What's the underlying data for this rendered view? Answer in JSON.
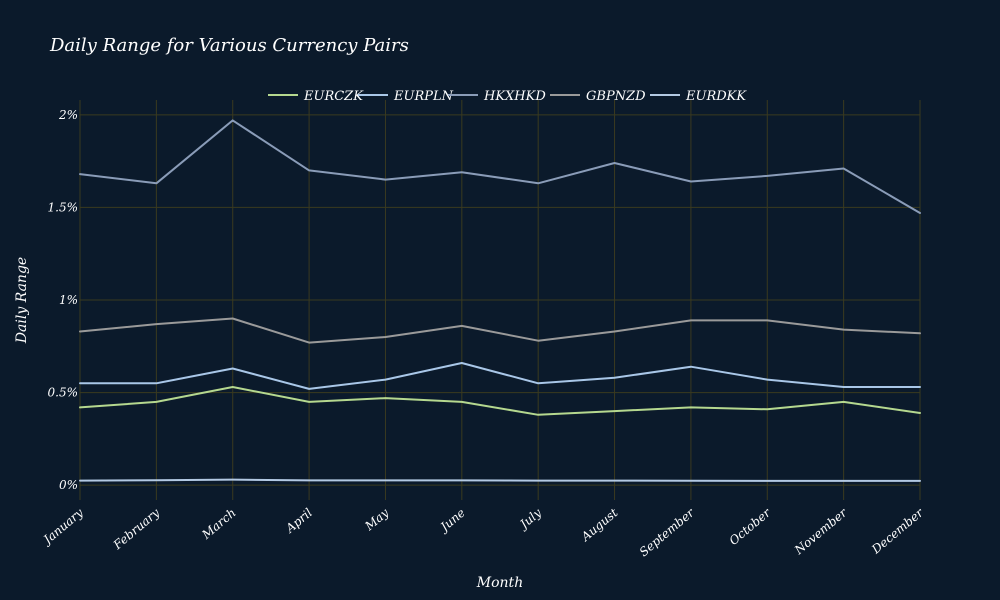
{
  "chart_data": {
    "type": "line",
    "title": "Daily Range for Various Currency Pairs",
    "xlabel": "Month",
    "ylabel": "Daily Range",
    "categories": [
      "January",
      "February",
      "March",
      "April",
      "May",
      "June",
      "July",
      "August",
      "September",
      "October",
      "November",
      "December"
    ],
    "ylim": [
      -0.0008,
      0.0208
    ],
    "yticks": [
      0,
      0.005,
      0.01,
      0.015,
      0.02
    ],
    "ytick_labels": [
      "0%",
      "0.5%",
      "1%",
      "1.5%",
      "2%"
    ],
    "grid": true,
    "legend_position": "top-center",
    "series": [
      {
        "name": "EURCZK",
        "color": "#b5d88f",
        "values": [
          0.0042,
          0.0045,
          0.0053,
          0.0045,
          0.0047,
          0.0045,
          0.0038,
          0.004,
          0.0042,
          0.0041,
          0.0045,
          0.0039
        ]
      },
      {
        "name": "EURPLN",
        "color": "#a9c7e8",
        "values": [
          0.0055,
          0.0055,
          0.0063,
          0.0052,
          0.0057,
          0.0066,
          0.0055,
          0.0058,
          0.0064,
          0.0057,
          0.0053,
          0.0053
        ]
      },
      {
        "name": "HKXHKD",
        "color": "#8a9cb8",
        "values": [
          0.0168,
          0.0163,
          0.0197,
          0.017,
          0.0165,
          0.0169,
          0.0163,
          0.0174,
          0.0164,
          0.0167,
          0.0171,
          0.0147
        ]
      },
      {
        "name": "GBPNZD",
        "color": "#9a9a9a",
        "values": [
          0.0083,
          0.0087,
          0.009,
          0.0077,
          0.008,
          0.0086,
          0.0078,
          0.0083,
          0.0089,
          0.0089,
          0.0084,
          0.0082
        ]
      },
      {
        "name": "EURDKK",
        "color": "#b3c9e3",
        "values": [
          0.00025,
          0.00027,
          0.0003,
          0.00026,
          0.00026,
          0.00026,
          0.00025,
          0.00025,
          0.00024,
          0.00023,
          0.00023,
          0.00023
        ]
      }
    ]
  }
}
